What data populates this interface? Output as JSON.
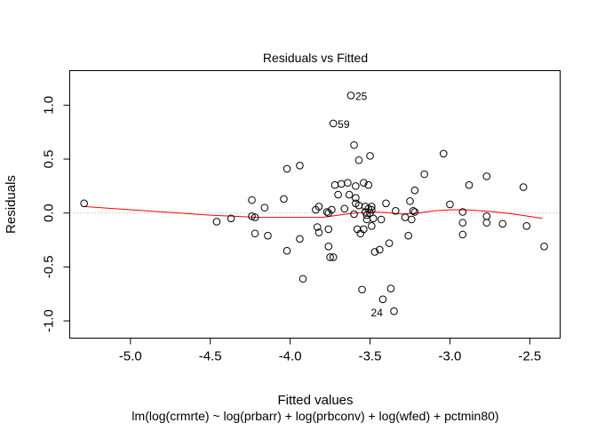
{
  "chart_data": {
    "type": "scatter",
    "title": "Residuals vs Fitted",
    "xlabel": "Fitted values",
    "ylabel": "Residuals",
    "subtitle": "lm(log(crmrte) ~ log(prbarr) + log(prbconv) + log(wfed) + pctmin80)",
    "xlim": [
      -5.38,
      -2.31
    ],
    "ylim": [
      -1.16,
      1.32
    ],
    "x_ticks": [
      -5.0,
      -4.5,
      -4.0,
      -3.5,
      -3.0,
      -2.5
    ],
    "x_tick_labels": [
      "-5.0",
      "-4.5",
      "-4.0",
      "-3.5",
      "-3.0",
      "-2.5"
    ],
    "y_ticks": [
      -1.0,
      -0.5,
      0.0,
      0.5,
      1.0
    ],
    "y_tick_labels": [
      "-1.0",
      "-0.5",
      "0.0",
      "0.5",
      "1.0"
    ],
    "grid": false,
    "reference_line": {
      "y": 0,
      "style": "dotted",
      "color": "#999999"
    },
    "smoother": {
      "color": "#ff0000",
      "x": [
        -5.29,
        -4.9,
        -4.5,
        -4.2,
        -4.0,
        -3.8,
        -3.6,
        -3.5,
        -3.4,
        -3.3,
        -3.2,
        -3.1,
        -3.0,
        -2.9,
        -2.75,
        -2.6,
        -2.42
      ],
      "y": [
        0.06,
        0.02,
        -0.02,
        -0.04,
        -0.04,
        -0.04,
        0.0,
        0.01,
        0.005,
        -0.01,
        0.0,
        0.02,
        0.03,
        0.03,
        0.015,
        -0.01,
        -0.05
      ]
    },
    "points": [
      {
        "x": -5.29,
        "y": 0.09
      },
      {
        "x": -4.46,
        "y": -0.08
      },
      {
        "x": -4.37,
        "y": -0.05
      },
      {
        "x": -4.24,
        "y": 0.12
      },
      {
        "x": -4.24,
        "y": -0.03
      },
      {
        "x": -4.22,
        "y": -0.04
      },
      {
        "x": -4.22,
        "y": -0.19
      },
      {
        "x": -4.16,
        "y": 0.05
      },
      {
        "x": -4.14,
        "y": -0.21
      },
      {
        "x": -4.04,
        "y": 0.13
      },
      {
        "x": -4.02,
        "y": 0.41
      },
      {
        "x": -4.02,
        "y": -0.35
      },
      {
        "x": -3.94,
        "y": 0.44
      },
      {
        "x": -3.94,
        "y": -0.24
      },
      {
        "x": -3.92,
        "y": -0.61
      },
      {
        "x": -3.84,
        "y": 0.03
      },
      {
        "x": -3.83,
        "y": -0.13
      },
      {
        "x": -3.82,
        "y": 0.06
      },
      {
        "x": -3.82,
        "y": -0.18
      },
      {
        "x": -3.77,
        "y": 0.01
      },
      {
        "x": -3.76,
        "y": 0.0
      },
      {
        "x": -3.76,
        "y": -0.15
      },
      {
        "x": -3.76,
        "y": -0.31
      },
      {
        "x": -3.75,
        "y": -0.41
      },
      {
        "x": -3.74,
        "y": 0.03
      },
      {
        "x": -3.73,
        "y": -0.41
      },
      {
        "x": -3.73,
        "y": 0.83
      },
      {
        "x": -3.72,
        "y": 0.26
      },
      {
        "x": -3.7,
        "y": 0.17
      },
      {
        "x": -3.68,
        "y": 0.27
      },
      {
        "x": -3.66,
        "y": 0.04
      },
      {
        "x": -3.64,
        "y": 0.28
      },
      {
        "x": -3.63,
        "y": 0.17
      },
      {
        "x": -3.62,
        "y": 1.09
      },
      {
        "x": -3.6,
        "y": -0.01
      },
      {
        "x": -3.6,
        "y": 0.63
      },
      {
        "x": -3.59,
        "y": 0.25
      },
      {
        "x": -3.59,
        "y": 0.14
      },
      {
        "x": -3.59,
        "y": 0.09
      },
      {
        "x": -3.58,
        "y": -0.15
      },
      {
        "x": -3.57,
        "y": 0.49
      },
      {
        "x": -3.57,
        "y": 0.07
      },
      {
        "x": -3.56,
        "y": -0.19
      },
      {
        "x": -3.55,
        "y": -0.71
      },
      {
        "x": -3.54,
        "y": 0.28
      },
      {
        "x": -3.54,
        "y": -0.15
      },
      {
        "x": -3.53,
        "y": 0.06
      },
      {
        "x": -3.53,
        "y": 0.01
      },
      {
        "x": -3.52,
        "y": -0.02
      },
      {
        "x": -3.52,
        "y": -0.06
      },
      {
        "x": -3.51,
        "y": 0.26
      },
      {
        "x": -3.51,
        "y": 0.04
      },
      {
        "x": -3.5,
        "y": 0.0
      },
      {
        "x": -3.5,
        "y": 0.53
      },
      {
        "x": -3.49,
        "y": 0.06
      },
      {
        "x": -3.49,
        "y": 0.03
      },
      {
        "x": -3.49,
        "y": -0.12
      },
      {
        "x": -3.48,
        "y": -0.05
      },
      {
        "x": -3.47,
        "y": -0.36
      },
      {
        "x": -3.44,
        "y": -0.34
      },
      {
        "x": -3.43,
        "y": -0.06
      },
      {
        "x": -3.42,
        "y": -0.8
      },
      {
        "x": -3.4,
        "y": 0.09
      },
      {
        "x": -3.38,
        "y": -0.28
      },
      {
        "x": -3.37,
        "y": -0.7
      },
      {
        "x": -3.35,
        "y": -0.91
      },
      {
        "x": -3.34,
        "y": 0.02
      },
      {
        "x": -3.28,
        "y": -0.04
      },
      {
        "x": -3.26,
        "y": -0.21
      },
      {
        "x": -3.25,
        "y": 0.11
      },
      {
        "x": -3.24,
        "y": -0.06
      },
      {
        "x": -3.23,
        "y": 0.02
      },
      {
        "x": -3.22,
        "y": 0.21
      },
      {
        "x": -3.22,
        "y": 0.01
      },
      {
        "x": -3.16,
        "y": 0.36
      },
      {
        "x": -3.04,
        "y": 0.55
      },
      {
        "x": -3.0,
        "y": 0.08
      },
      {
        "x": -2.92,
        "y": 0.01
      },
      {
        "x": -2.92,
        "y": -0.09
      },
      {
        "x": -2.92,
        "y": -0.2
      },
      {
        "x": -2.88,
        "y": 0.26
      },
      {
        "x": -2.77,
        "y": 0.34
      },
      {
        "x": -2.77,
        "y": -0.03
      },
      {
        "x": -2.77,
        "y": -0.09
      },
      {
        "x": -2.67,
        "y": -0.1
      },
      {
        "x": -2.54,
        "y": 0.24
      },
      {
        "x": -2.52,
        "y": -0.12
      },
      {
        "x": -2.41,
        "y": -0.31
      }
    ],
    "annotations": [
      {
        "text": "25",
        "x": -3.62,
        "y": 1.09
      },
      {
        "text": "59",
        "x": -3.73,
        "y": 0.83
      },
      {
        "text": "24",
        "x": -3.42,
        "y": -0.8
      }
    ]
  }
}
